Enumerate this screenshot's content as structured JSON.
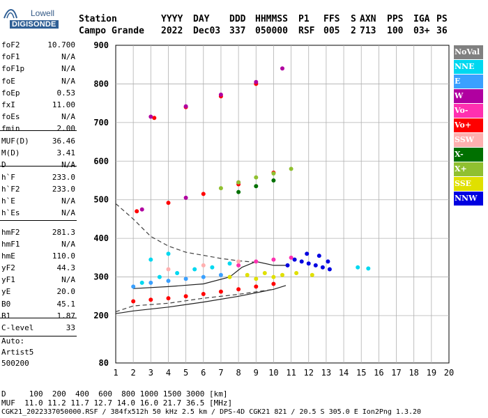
{
  "branding": {
    "line1": "Lowell",
    "line2": "DIGISONDE"
  },
  "header": {
    "labels": [
      "Station",
      "YYYY",
      "DAY",
      "DDD",
      "HHMMSS",
      "P1",
      "FFS",
      "S",
      "AXN",
      "PPS",
      "IGA",
      "PS"
    ],
    "values": [
      "Campo Grande",
      "2022",
      "Dec03",
      "337",
      "050000",
      "RSF",
      "005",
      "2",
      "713",
      "100",
      "03+",
      "36"
    ]
  },
  "params": [
    {
      "k": "foF2",
      "v": "10.700"
    },
    {
      "k": "foF1",
      "v": "N/A"
    },
    {
      "k": "foF1p",
      "v": "N/A"
    },
    {
      "k": "foE",
      "v": "N/A"
    },
    {
      "k": "foEp",
      "v": "0.53"
    },
    {
      "k": "fxI",
      "v": "11.00"
    },
    {
      "k": "foEs",
      "v": "N/A"
    },
    {
      "k": "fmin",
      "v": "2.00"
    },
    {
      "k": "MUF(D)",
      "v": "36.46"
    },
    {
      "k": "M(D)",
      "v": "3.41"
    },
    {
      "k": "D",
      "v": "N/A"
    },
    {
      "k": "h`F",
      "v": "233.0"
    },
    {
      "k": "h`F2",
      "v": "233.0"
    },
    {
      "k": "h`E",
      "v": "N/A"
    },
    {
      "k": "h`Es",
      "v": "N/A"
    },
    {
      "k": "hmF2",
      "v": "281.3"
    },
    {
      "k": "hmF1",
      "v": "N/A"
    },
    {
      "k": "hmE",
      "v": "110.0"
    },
    {
      "k": "yF2",
      "v": "44.3"
    },
    {
      "k": "yF1",
      "v": "N/A"
    },
    {
      "k": "yE",
      "v": "20.0"
    },
    {
      "k": "B0",
      "v": "45.1"
    },
    {
      "k": "B1",
      "v": "1.87"
    },
    {
      "k": "C-level",
      "v": "33"
    }
  ],
  "autoscaling": {
    "line1": "Auto:",
    "line2": "Artist5",
    "line3": "500200"
  },
  "legend": [
    {
      "label": "NoVal",
      "color": "#808080"
    },
    {
      "label": "NNE",
      "color": "#00d8f0"
    },
    {
      "label": "E",
      "color": "#3aa0ff"
    },
    {
      "label": "W",
      "color": "#b000a0"
    },
    {
      "label": "Vo-",
      "color": "#ff30b0"
    },
    {
      "label": "Vo+",
      "color": "#ff0000"
    },
    {
      "label": "SSW",
      "color": "#ffb0b0"
    },
    {
      "label": "X-",
      "color": "#007000"
    },
    {
      "label": "X+",
      "color": "#90c030"
    },
    {
      "label": "SSE",
      "color": "#e0e000"
    },
    {
      "label": "NNW",
      "color": "#0000e0"
    }
  ],
  "footer": {
    "line1": "D     100  200  400  600  800 1000 1500 3000 [km]",
    "line2": "MUF  11.0 11.2 11.7 12.7 14.0 16.0 21.7 36.5 [MHz]",
    "line3": "CGK21_2022337050000.RSF / 384fx512h 50 kHz 2.5 km / DPS-4D CGK21 821 / 20.5 S 305.0 E Ion2Png 1.3.20"
  },
  "chart_data": {
    "type": "scatter",
    "xlim": [
      1,
      20
    ],
    "ylim": [
      80,
      900
    ],
    "xticks": [
      1,
      2,
      3,
      4,
      5,
      6,
      7,
      8,
      9,
      10,
      11,
      12,
      13,
      14,
      15,
      16,
      17,
      18,
      19,
      20
    ],
    "yticks": [
      80,
      200,
      300,
      400,
      500,
      600,
      700,
      800,
      900
    ],
    "grid": true,
    "legend_position": "right",
    "series": [
      {
        "name": "NNW",
        "color": "#0000e0",
        "points": [
          [
            10.8,
            330
          ],
          [
            11.2,
            345
          ],
          [
            11.6,
            340
          ],
          [
            12.0,
            335
          ],
          [
            12.4,
            330
          ],
          [
            12.8,
            325
          ],
          [
            11.9,
            360
          ],
          [
            12.6,
            355
          ],
          [
            13.1,
            340
          ],
          [
            13.2,
            320
          ]
        ]
      },
      {
        "name": "SSE",
        "color": "#e0e000",
        "points": [
          [
            7.5,
            300
          ],
          [
            8.5,
            305
          ],
          [
            9.5,
            310
          ],
          [
            10.5,
            305
          ],
          [
            11.3,
            310
          ],
          [
            12.2,
            305
          ],
          [
            9.0,
            295
          ],
          [
            10.0,
            300
          ]
        ]
      },
      {
        "name": "NNE",
        "color": "#00d8f0",
        "points": [
          [
            2.5,
            285
          ],
          [
            3.5,
            300
          ],
          [
            4.5,
            310
          ],
          [
            5.5,
            320
          ],
          [
            6.5,
            325
          ],
          [
            7.5,
            335
          ],
          [
            3.0,
            345
          ],
          [
            4.0,
            360
          ],
          [
            14.8,
            325
          ],
          [
            15.4,
            322
          ]
        ]
      },
      {
        "name": "E",
        "color": "#3aa0ff",
        "points": [
          [
            2.0,
            275
          ],
          [
            3.0,
            285
          ],
          [
            4.0,
            290
          ],
          [
            5.0,
            295
          ],
          [
            6.0,
            300
          ],
          [
            7.0,
            305
          ]
        ]
      },
      {
        "name": "Vo+",
        "color": "#ff0000",
        "points": [
          [
            2.0,
            237
          ],
          [
            3.0,
            241
          ],
          [
            4.0,
            245
          ],
          [
            5.0,
            250
          ],
          [
            6.0,
            256
          ],
          [
            7.0,
            262
          ],
          [
            8.0,
            268
          ],
          [
            9.0,
            275
          ],
          [
            10.0,
            282
          ],
          [
            2.2,
            470
          ],
          [
            4.0,
            492
          ],
          [
            6.0,
            515
          ],
          [
            8.0,
            540
          ],
          [
            10.0,
            570
          ],
          [
            3.2,
            712
          ],
          [
            5.0,
            740
          ],
          [
            7.0,
            768
          ],
          [
            9.0,
            800
          ]
        ]
      },
      {
        "name": "Vo-",
        "color": "#ff30b0",
        "points": [
          [
            8.0,
            330
          ],
          [
            9.0,
            340
          ],
          [
            10.0,
            345
          ],
          [
            11.0,
            350
          ]
        ]
      },
      {
        "name": "W",
        "color": "#b000a0",
        "points": [
          [
            3.0,
            715
          ],
          [
            5.0,
            742
          ],
          [
            7.0,
            772
          ],
          [
            9.0,
            805
          ],
          [
            10.5,
            840
          ],
          [
            2.5,
            475
          ],
          [
            5.0,
            505
          ],
          [
            8.0,
            545
          ]
        ]
      },
      {
        "name": "X+",
        "color": "#90c030",
        "points": [
          [
            7.0,
            530
          ],
          [
            8.0,
            545
          ],
          [
            9.0,
            558
          ],
          [
            10.0,
            568
          ],
          [
            11.0,
            580
          ]
        ]
      },
      {
        "name": "X-",
        "color": "#007000",
        "points": [
          [
            8.0,
            520
          ],
          [
            9.0,
            535
          ],
          [
            10.0,
            550
          ]
        ]
      },
      {
        "name": "SSW",
        "color": "#ffb0b0",
        "points": [
          [
            4.0,
            320
          ],
          [
            6.0,
            330
          ],
          [
            8.0,
            340
          ]
        ]
      }
    ],
    "curves": [
      {
        "name": "profile-lower",
        "style": "solid",
        "points": [
          [
            1.0,
            205
          ],
          [
            2.0,
            212
          ],
          [
            4.0,
            222
          ],
          [
            6.0,
            235
          ],
          [
            8.0,
            250
          ],
          [
            10.0,
            268
          ],
          [
            10.7,
            278
          ]
        ]
      },
      {
        "name": "profile-upper",
        "style": "solid",
        "points": [
          [
            2.0,
            270
          ],
          [
            4.0,
            275
          ],
          [
            6.0,
            282
          ],
          [
            7.5,
            300
          ],
          [
            8.2,
            325
          ],
          [
            9.0,
            340
          ],
          [
            10.0,
            330
          ],
          [
            10.7,
            330
          ]
        ]
      },
      {
        "name": "dashed-upper",
        "style": "dashed",
        "points": [
          [
            1.0,
            490
          ],
          [
            2.0,
            450
          ],
          [
            3.0,
            405
          ],
          [
            4.0,
            380
          ],
          [
            5.0,
            364
          ],
          [
            6.0,
            356
          ],
          [
            7.0,
            348
          ],
          [
            8.0,
            342
          ],
          [
            9.0,
            338
          ]
        ]
      },
      {
        "name": "dashed-lower",
        "style": "dashed",
        "points": [
          [
            1.0,
            210
          ],
          [
            2.0,
            225
          ],
          [
            4.0,
            232
          ],
          [
            6.0,
            245
          ],
          [
            8.0,
            255
          ],
          [
            10.0,
            268
          ]
        ]
      }
    ]
  }
}
